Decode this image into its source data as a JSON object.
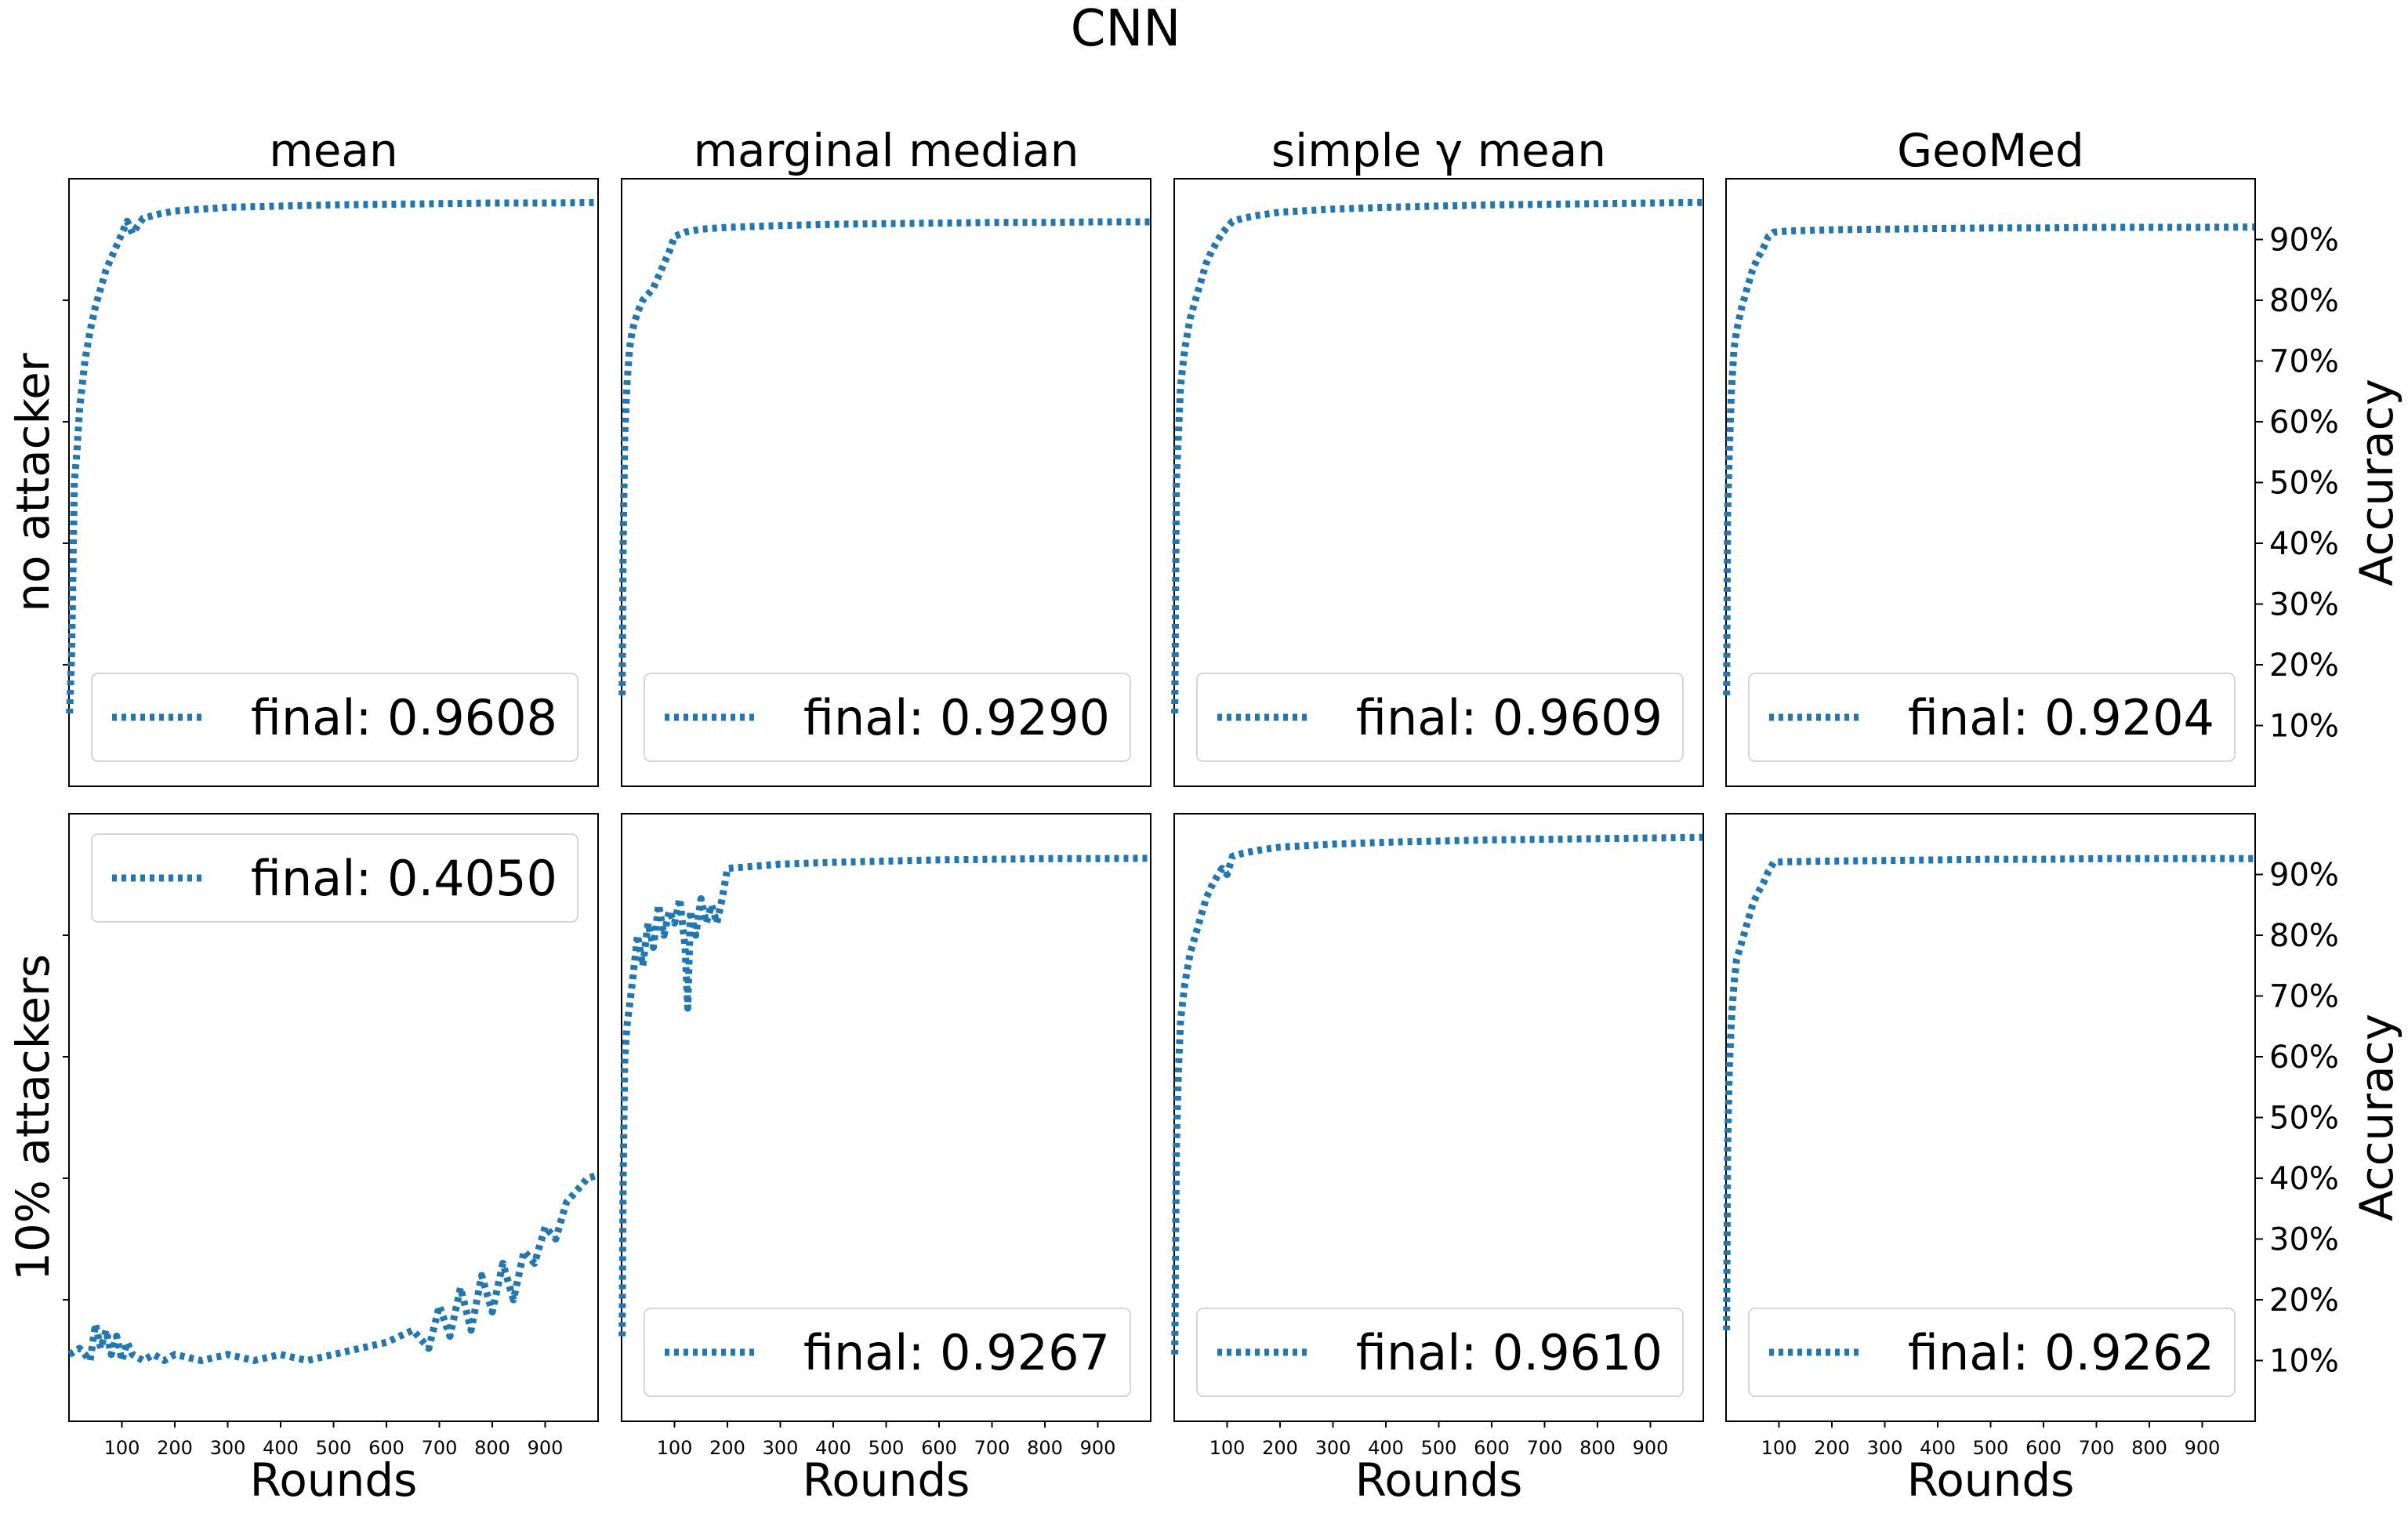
{
  "figure_title": "CNN",
  "series_color": "#1f77b4",
  "xlabel": "Rounds",
  "ylabel": "Accuracy",
  "col_titles": [
    "mean",
    "marginal median",
    "simple γ mean",
    "GeoMed"
  ],
  "row_labels": [
    "no attacker",
    "10% attackers"
  ],
  "x_ticks": [
    "100",
    "200",
    "300",
    "400",
    "500",
    "600",
    "700",
    "800",
    "900"
  ],
  "y_ticks": [
    "10%",
    "20%",
    "30%",
    "40%",
    "50%",
    "60%",
    "70%",
    "80%",
    "90%"
  ],
  "chart_data": [
    {
      "type": "line",
      "row": 0,
      "col": 0,
      "title": "mean",
      "legend": "final: 0.9608",
      "legend_loc": "lower-right",
      "xlim": [
        0,
        1000
      ],
      "ylim": [
        0,
        1
      ],
      "x": [
        1,
        5,
        10,
        15,
        20,
        30,
        40,
        50,
        60,
        70,
        80,
        90,
        100,
        110,
        120,
        140,
        170,
        200,
        250,
        300,
        400,
        500,
        600,
        700,
        800,
        900,
        999
      ],
      "y": [
        0.12,
        0.22,
        0.5,
        0.55,
        0.62,
        0.7,
        0.75,
        0.79,
        0.82,
        0.85,
        0.87,
        0.89,
        0.91,
        0.93,
        0.91,
        0.935,
        0.942,
        0.947,
        0.95,
        0.953,
        0.955,
        0.957,
        0.958,
        0.959,
        0.96,
        0.96,
        0.9608
      ]
    },
    {
      "type": "line",
      "row": 0,
      "col": 1,
      "title": "marginal median",
      "legend": "final: 0.9290",
      "legend_loc": "lower-right",
      "xlim": [
        0,
        1000
      ],
      "ylim": [
        0,
        1
      ],
      "x": [
        1,
        3,
        6,
        10,
        15,
        20,
        30,
        40,
        50,
        60,
        70,
        80,
        90,
        100,
        120,
        150,
        200,
        300,
        400,
        500,
        600,
        700,
        800,
        900,
        999
      ],
      "y": [
        0.15,
        0.4,
        0.58,
        0.66,
        0.72,
        0.75,
        0.78,
        0.8,
        0.81,
        0.82,
        0.84,
        0.86,
        0.88,
        0.905,
        0.912,
        0.917,
        0.92,
        0.923,
        0.925,
        0.926,
        0.927,
        0.928,
        0.928,
        0.929,
        0.929
      ]
    },
    {
      "type": "line",
      "row": 0,
      "col": 2,
      "title": "simple γ mean",
      "legend": "final: 0.9609",
      "legend_loc": "lower-right",
      "xlim": [
        0,
        1000
      ],
      "ylim": [
        0,
        1
      ],
      "x": [
        1,
        4,
        8,
        12,
        20,
        30,
        40,
        50,
        60,
        70,
        80,
        90,
        100,
        110,
        130,
        160,
        200,
        300,
        400,
        500,
        600,
        700,
        800,
        900,
        999
      ],
      "y": [
        0.12,
        0.5,
        0.58,
        0.66,
        0.72,
        0.77,
        0.8,
        0.83,
        0.86,
        0.88,
        0.895,
        0.91,
        0.92,
        0.93,
        0.935,
        0.94,
        0.945,
        0.95,
        0.953,
        0.955,
        0.957,
        0.958,
        0.959,
        0.96,
        0.9609
      ]
    },
    {
      "type": "line",
      "row": 0,
      "col": 3,
      "title": "GeoMed",
      "legend": "final: 0.9204",
      "legend_loc": "lower-right",
      "xlim": [
        0,
        1000
      ],
      "ylim": [
        0,
        1
      ],
      "x": [
        1,
        3,
        6,
        10,
        15,
        20,
        30,
        40,
        50,
        60,
        70,
        80,
        90,
        120,
        200,
        300,
        400,
        500,
        600,
        700,
        800,
        900,
        999
      ],
      "y": [
        0.15,
        0.45,
        0.55,
        0.65,
        0.72,
        0.75,
        0.79,
        0.82,
        0.85,
        0.87,
        0.885,
        0.905,
        0.912,
        0.914,
        0.916,
        0.917,
        0.918,
        0.919,
        0.919,
        0.92,
        0.92,
        0.92,
        0.9204
      ]
    },
    {
      "type": "line",
      "row": 1,
      "col": 0,
      "title": "mean",
      "legend": "final: 0.4050",
      "legend_loc": "upper-right",
      "xlim": [
        0,
        1000
      ],
      "ylim": [
        0,
        1
      ],
      "x": [
        1,
        20,
        40,
        50,
        60,
        70,
        80,
        90,
        100,
        110,
        120,
        140,
        160,
        180,
        200,
        250,
        300,
        350,
        400,
        450,
        500,
        550,
        600,
        650,
        680,
        700,
        720,
        740,
        760,
        780,
        800,
        820,
        840,
        860,
        880,
        900,
        920,
        940,
        960,
        980,
        999
      ],
      "y": [
        0.11,
        0.12,
        0.1,
        0.16,
        0.12,
        0.15,
        0.11,
        0.14,
        0.1,
        0.13,
        0.11,
        0.1,
        0.11,
        0.1,
        0.11,
        0.1,
        0.11,
        0.1,
        0.11,
        0.1,
        0.11,
        0.12,
        0.13,
        0.15,
        0.12,
        0.19,
        0.14,
        0.22,
        0.15,
        0.24,
        0.18,
        0.26,
        0.2,
        0.28,
        0.26,
        0.32,
        0.3,
        0.36,
        0.38,
        0.4,
        0.405
      ]
    },
    {
      "type": "line",
      "row": 1,
      "col": 1,
      "title": "marginal median",
      "legend": "final: 0.9267",
      "legend_loc": "lower-right",
      "xlim": [
        0,
        1000
      ],
      "ylim": [
        0,
        1
      ],
      "x": [
        1,
        3,
        6,
        10,
        20,
        30,
        40,
        50,
        60,
        70,
        80,
        90,
        100,
        110,
        120,
        125,
        130,
        140,
        150,
        160,
        170,
        180,
        190,
        200,
        300,
        400,
        500,
        600,
        700,
        800,
        900,
        999
      ],
      "y": [
        0.14,
        0.4,
        0.6,
        0.65,
        0.72,
        0.8,
        0.75,
        0.82,
        0.78,
        0.85,
        0.8,
        0.84,
        0.82,
        0.86,
        0.78,
        0.68,
        0.84,
        0.8,
        0.86,
        0.82,
        0.85,
        0.82,
        0.86,
        0.91,
        0.917,
        0.92,
        0.922,
        0.924,
        0.925,
        0.926,
        0.926,
        0.9267
      ]
    },
    {
      "type": "line",
      "row": 1,
      "col": 2,
      "title": "simple γ mean",
      "legend": "final: 0.9610",
      "legend_loc": "lower-right",
      "xlim": [
        0,
        1000
      ],
      "ylim": [
        0,
        1
      ],
      "x": [
        1,
        4,
        8,
        12,
        20,
        30,
        40,
        50,
        60,
        70,
        80,
        90,
        100,
        110,
        130,
        160,
        200,
        300,
        400,
        500,
        600,
        700,
        800,
        900,
        999
      ],
      "y": [
        0.11,
        0.45,
        0.58,
        0.66,
        0.72,
        0.77,
        0.8,
        0.83,
        0.86,
        0.88,
        0.895,
        0.91,
        0.9,
        0.93,
        0.935,
        0.94,
        0.945,
        0.95,
        0.953,
        0.955,
        0.957,
        0.958,
        0.959,
        0.96,
        0.961
      ]
    },
    {
      "type": "line",
      "row": 1,
      "col": 3,
      "title": "GeoMed",
      "legend": "final: 0.9262",
      "legend_loc": "lower-right",
      "xlim": [
        0,
        1000
      ],
      "ylim": [
        0,
        1
      ],
      "x": [
        1,
        3,
        6,
        10,
        15,
        20,
        30,
        40,
        50,
        60,
        70,
        80,
        90,
        120,
        200,
        300,
        400,
        500,
        600,
        700,
        800,
        900,
        999
      ],
      "y": [
        0.15,
        0.45,
        0.58,
        0.66,
        0.72,
        0.76,
        0.79,
        0.82,
        0.85,
        0.87,
        0.885,
        0.905,
        0.92,
        0.921,
        0.922,
        0.923,
        0.924,
        0.925,
        0.925,
        0.926,
        0.926,
        0.926,
        0.9262
      ]
    }
  ]
}
